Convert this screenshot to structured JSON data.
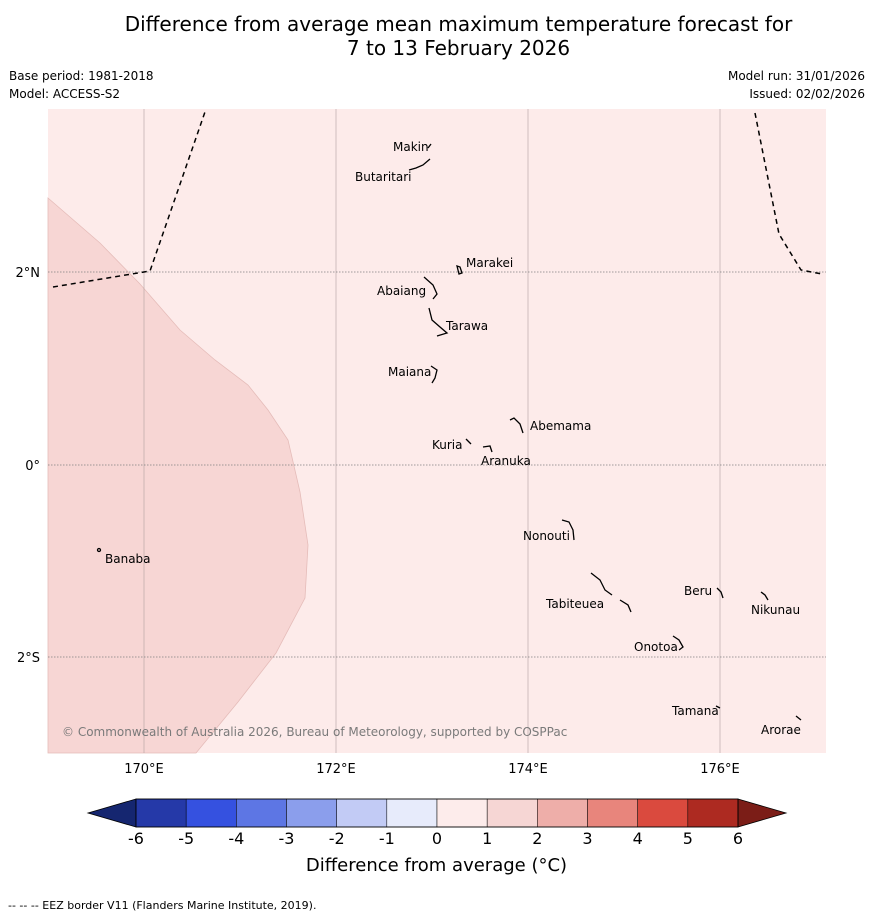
{
  "title_line1": "Difference from average mean maximum temperature forecast for",
  "title_line2": "7 to 13 February 2026",
  "base_period": "Base period: 1981-2018",
  "model": "Model: ACCESS-S2",
  "model_run": "Model run: 31/01/2026",
  "issued": "Issued: 02/02/2026",
  "copyright": "© Commonwealth of Australia 2026, Bureau of Meteorology, supported by COSPPac",
  "lat_labels": [
    "2°N",
    "0°",
    "2°S"
  ],
  "lon_labels": [
    "170°E",
    "172°E",
    "174°E",
    "176°E"
  ],
  "places": [
    "Makin",
    "Butaritari",
    "Marakei",
    "Abaiang",
    "Tarawa",
    "Maiana",
    "Abemama",
    "Kuria",
    "Aranuka",
    "Banaba",
    "Nonouti",
    "Beru",
    "Nikunau",
    "Tabiteuea",
    "Onotoa",
    "Tamana",
    "Arorae"
  ],
  "colorbar": {
    "ticks": [
      "-6",
      "-5",
      "-4",
      "-3",
      "-2",
      "-1",
      "0",
      "1",
      "2",
      "3",
      "4",
      "5",
      "6"
    ],
    "colors": [
      "#2539a8",
      "#3551e0",
      "#5d76e4",
      "#8b9eec",
      "#c2cbf5",
      "#e7ebfb",
      "#fdeceb",
      "#f6d6d4",
      "#eeaea9",
      "#e8857c",
      "#da4a3e",
      "#ad2a21"
    ],
    "under_color": "#152670",
    "over_color": "#7b1d17",
    "label": "Difference from average (°C)"
  },
  "footer": "-- -- -- EEZ border V11 (Flanders Marine Institute, 2019).",
  "colors": {
    "map_bg": "#fdebea",
    "warm_region": "#f7d6d4"
  }
}
